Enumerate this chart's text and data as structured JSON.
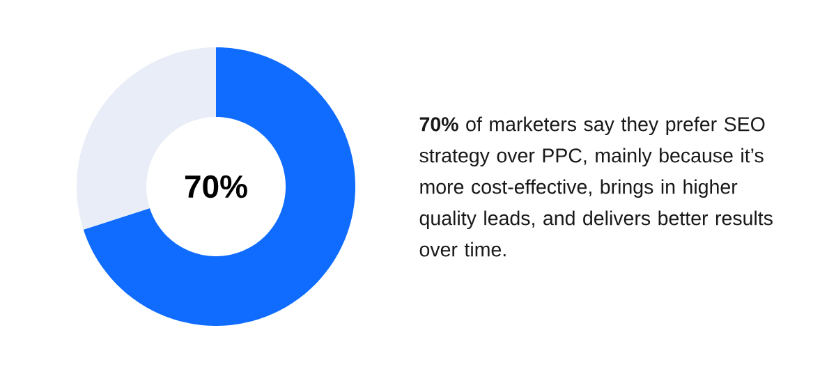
{
  "chart_data": {
    "type": "donut",
    "categories": [
      null,
      null
    ],
    "values": [
      70,
      30
    ],
    "colors": [
      "#0f6cff",
      "#e8edf7"
    ],
    "value_labels": [
      "70%",
      null
    ],
    "annotations": [
      "**70%** of marketers say they prefer SEO strategy over PPC, mainly because it’s more cost-effective, brings in higher quality leads, and delivers better results over time."
    ]
  }
}
